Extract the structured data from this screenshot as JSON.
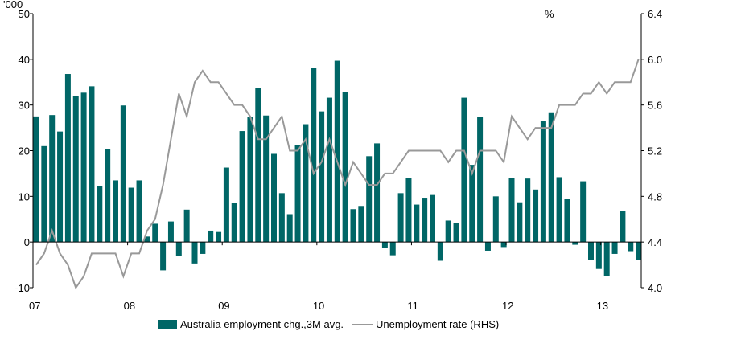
{
  "chart_data": {
    "type": "bar+line",
    "left_axis": {
      "unit_label": "'000",
      "ylim": [
        -10,
        50
      ],
      "ticks": [
        "-10",
        "0",
        "10",
        "20",
        "30",
        "40",
        "50"
      ]
    },
    "right_axis": {
      "unit_label": "%",
      "ylim": [
        4.0,
        6.4
      ],
      "ticks": [
        "4.0",
        "4.4",
        "4.8",
        "5.2",
        "5.6",
        "6.0",
        "6.4"
      ]
    },
    "x_ticks": [
      "07",
      "08",
      "09",
      "10",
      "11",
      "12",
      "13"
    ],
    "x_start": "Jan 2007",
    "frequency": "monthly",
    "grid": false,
    "legend_position": "bottom",
    "series": [
      {
        "name": "Australia employment chg.,3M avg.",
        "type": "bar",
        "axis": "left",
        "color": "#006666",
        "values": [
          27.5,
          21,
          27.8,
          24.2,
          36.8,
          32,
          32.7,
          34.1,
          12.2,
          20.4,
          13.5,
          29.9,
          11.9,
          13.5,
          1.2,
          4.0,
          -6.2,
          4.5,
          -3.0,
          7.1,
          -4.7,
          -2.6,
          2.5,
          2.2,
          16.3,
          8.6,
          24.3,
          27.4,
          33.8,
          27.7,
          19.3,
          10.7,
          6.1,
          21.2,
          25.8,
          38.1,
          28.6,
          31.6,
          39.7,
          32.9,
          7.2,
          7.9,
          18.8,
          21.6,
          -1.2,
          -2.9,
          10.7,
          14.1,
          8.2,
          9.7,
          10.3,
          -4.1,
          4.7,
          4.2,
          31.6,
          16.9,
          27.4,
          -1.9,
          10.0,
          -1.1,
          14.1,
          8.7,
          13.9,
          11.5,
          26.5,
          28.4,
          14.2,
          9.5,
          -0.6,
          13.3,
          -4.0,
          -5.9,
          -7.5,
          -2.6,
          6.8,
          -2.0,
          -4.0
        ]
      },
      {
        "name": "Unemployment rate (RHS)",
        "type": "line",
        "axis": "right",
        "color": "#999999",
        "values": [
          4.2,
          4.3,
          4.5,
          4.3,
          4.2,
          4.0,
          4.1,
          4.3,
          4.3,
          4.3,
          4.3,
          4.1,
          4.3,
          4.3,
          4.5,
          4.6,
          4.9,
          5.3,
          5.7,
          5.5,
          5.8,
          5.9,
          5.8,
          5.8,
          5.7,
          5.6,
          5.6,
          5.5,
          5.3,
          5.3,
          5.4,
          5.5,
          5.2,
          5.2,
          5.3,
          5.0,
          5.1,
          5.3,
          5.1,
          4.9,
          5.1,
          5.0,
          4.9,
          4.9,
          5.0,
          5.0,
          5.1,
          5.2,
          5.2,
          5.2,
          5.2,
          5.2,
          5.1,
          5.2,
          5.2,
          5.0,
          5.2,
          5.2,
          5.2,
          5.1,
          5.5,
          5.4,
          5.3,
          5.4,
          5.4,
          5.4,
          5.6,
          5.6,
          5.6,
          5.7,
          5.7,
          5.8,
          5.7,
          5.8,
          5.8,
          5.8,
          6.0
        ]
      }
    ]
  }
}
